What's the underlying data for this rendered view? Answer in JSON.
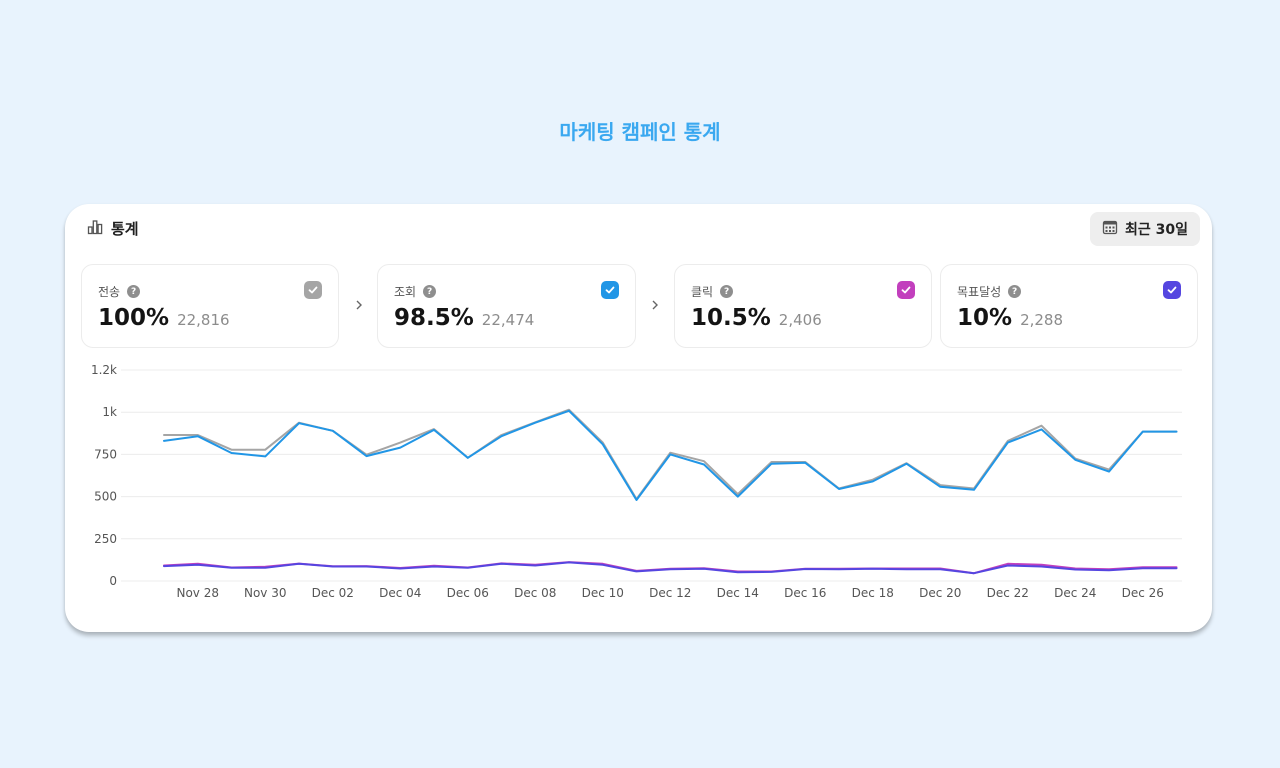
{
  "page_title": "마케팅 캠페인 통계",
  "header": {
    "label": "통계",
    "range_button": "최근 30일"
  },
  "metrics": [
    {
      "label": "전송",
      "percent": "100%",
      "count": "22,816",
      "color": "#a5a5a5"
    },
    {
      "label": "조회",
      "percent": "98.5%",
      "count": "22,474",
      "color": "#2196e6"
    },
    {
      "label": "클릭",
      "percent": "10.5%",
      "count": "2,406",
      "color": "#c23fbd"
    },
    {
      "label": "목표달성",
      "percent": "10%",
      "count": "2,288",
      "color": "#5546e0"
    }
  ],
  "help_glyph": "?",
  "chart_data": {
    "type": "line",
    "y_ticks": [
      "0",
      "250",
      "500",
      "750",
      "1k",
      "1.2k"
    ],
    "y_tick_values": [
      0,
      250,
      500,
      750,
      1000,
      1250
    ],
    "ylim": [
      0,
      1250
    ],
    "x_tick_labels": [
      "Nov 28",
      "Nov 30",
      "Dec 02",
      "Dec 04",
      "Dec 06",
      "Dec 08",
      "Dec 10",
      "Dec 12",
      "Dec 14",
      "Dec 16",
      "Dec 18",
      "Dec 20",
      "Dec 22",
      "Dec 24",
      "Dec 26"
    ],
    "x": [
      "Nov 27",
      "Nov 28",
      "Nov 29",
      "Nov 30",
      "Dec 01",
      "Dec 02",
      "Dec 03",
      "Dec 04",
      "Dec 05",
      "Dec 06",
      "Dec 07",
      "Dec 08",
      "Dec 09",
      "Dec 10",
      "Dec 11",
      "Dec 12",
      "Dec 13",
      "Dec 14",
      "Dec 15",
      "Dec 16",
      "Dec 17",
      "Dec 18",
      "Dec 19",
      "Dec 20",
      "Dec 21",
      "Dec 22",
      "Dec 23",
      "Dec 24",
      "Dec 25",
      "Dec 26",
      "Dec 27"
    ],
    "grid": true,
    "series": [
      {
        "name": "전송",
        "color": "#a5a5a5",
        "values": [
          865,
          865,
          778,
          778,
          938,
          890,
          748,
          820,
          900,
          730,
          865,
          940,
          1015,
          820,
          485,
          760,
          710,
          515,
          705,
          705,
          548,
          600,
          698,
          568,
          548,
          830,
          920,
          725,
          660,
          885,
          885
        ]
      },
      {
        "name": "조회",
        "color": "#2196e6",
        "values": [
          830,
          858,
          758,
          738,
          935,
          890,
          740,
          790,
          895,
          730,
          858,
          938,
          1008,
          810,
          480,
          750,
          690,
          500,
          695,
          700,
          545,
          590,
          695,
          558,
          540,
          820,
          898,
          718,
          648,
          885,
          885
        ]
      },
      {
        "name": "클릭",
        "color": "#c23fbd",
        "values": [
          92,
          102,
          80,
          84,
          103,
          87,
          88,
          77,
          90,
          80,
          104,
          96,
          112,
          102,
          60,
          72,
          76,
          56,
          56,
          72,
          72,
          74,
          74,
          74,
          46,
          102,
          96,
          74,
          70,
          82,
          82
        ]
      },
      {
        "name": "목표달성",
        "color": "#5546e0",
        "values": [
          88,
          96,
          78,
          78,
          102,
          86,
          86,
          74,
          86,
          78,
          102,
          92,
          110,
          96,
          57,
          70,
          72,
          52,
          54,
          71,
          70,
          72,
          70,
          70,
          46,
          92,
          86,
          68,
          64,
          76,
          76
        ]
      }
    ]
  }
}
